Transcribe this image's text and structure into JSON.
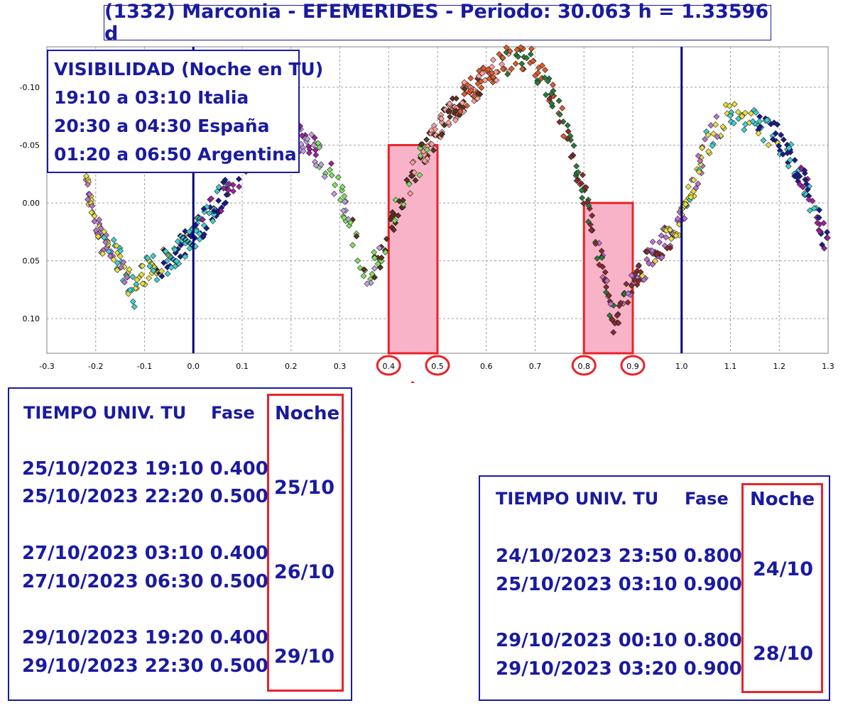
{
  "title": "(1332) Marconia - EFEMERIDES - Periodo: 30.063 h = 1.33596 d",
  "visibility": {
    "heading": "VISIBILIDAD (Noche en TU)",
    "lines": [
      "19:10 a 03:10 Italia",
      "20:30 a 04:30 España",
      "01:20 a 06:50 Argentina"
    ]
  },
  "table_left": {
    "col_time": "TIEMPO UNIV. TU",
    "col_phase": "Fase",
    "col_night": "Noche",
    "groups": [
      {
        "rows": [
          "25/10/2023  19:10 0.400",
          "25/10/2023  22:20 0.500"
        ],
        "night": "25/10"
      },
      {
        "rows": [
          "27/10/2023  03:10 0.400",
          "27/10/2023  06:30 0.500"
        ],
        "night": "26/10"
      },
      {
        "rows": [
          "29/10/2023  19:20 0.400",
          "29/10/2023  22:30 0.500"
        ],
        "night": "29/10"
      }
    ]
  },
  "table_right": {
    "col_time": "TIEMPO UNIV. TU",
    "col_phase": "Fase",
    "col_night": "Noche",
    "groups": [
      {
        "rows": [
          "24/10/2023  23:50 0.800",
          "25/10/2023  03:10 0.900"
        ],
        "night": "24/10"
      },
      {
        "rows": [
          "29/10/2023  00:10 0.800",
          "29/10/2023  03:20 0.900"
        ],
        "night": "28/10"
      }
    ]
  },
  "colors": {
    "accent": "#1a1aa0",
    "highlight_fill": "#f9b3c8",
    "highlight_border": "#e8232a",
    "arrow": "#e8232a",
    "night_line": "#00007a"
  },
  "chart_data": {
    "type": "scatter",
    "title": "(1332) Marconia - EFEMERIDES - Periodo: 30.063 h = 1.33596 d",
    "xlabel": "",
    "ylabel": "",
    "xlim": [
      -0.3,
      1.3
    ],
    "ylim": [
      0.13,
      -0.135
    ],
    "y_inverted": true,
    "grid": true,
    "x_ticks": [
      "-0.3",
      "-0.2",
      "-0.1",
      "0.0",
      "0.1",
      "0.2",
      "0.3",
      "0.4",
      "0.5",
      "0.6",
      "0.7",
      "0.8",
      "0.9",
      "1.0",
      "1.1",
      "1.2",
      "1.3"
    ],
    "y_ticks": [
      "-0.10",
      "-0.05",
      "0.00",
      "0.05",
      "0.10"
    ],
    "vertical_lines": [
      0.0,
      1.0
    ],
    "highlight_bands": [
      {
        "x": [
          0.4,
          0.5
        ],
        "y_top": -0.05
      },
      {
        "x": [
          0.8,
          0.9
        ],
        "y_top": 0.0
      }
    ],
    "circled_ticks": [
      "0.4",
      "0.5",
      "0.8",
      "0.9"
    ],
    "lightcurve": [
      [
        -0.22,
        -0.02
      ],
      [
        -0.19,
        0.03
      ],
      [
        -0.15,
        0.05
      ],
      [
        -0.12,
        0.08
      ],
      [
        -0.1,
        0.06
      ],
      [
        -0.05,
        0.05
      ],
      [
        0.0,
        0.03
      ],
      [
        0.05,
        0.0
      ],
      [
        0.1,
        -0.03
      ],
      [
        0.15,
        -0.055
      ],
      [
        0.2,
        -0.06
      ],
      [
        0.25,
        -0.045
      ],
      [
        0.3,
        -0.01
      ],
      [
        0.33,
        0.03
      ],
      [
        0.35,
        0.065
      ],
      [
        0.38,
        0.05
      ],
      [
        0.42,
        0.0
      ],
      [
        0.48,
        -0.05
      ],
      [
        0.55,
        -0.09
      ],
      [
        0.6,
        -0.11
      ],
      [
        0.65,
        -0.125
      ],
      [
        0.7,
        -0.12
      ],
      [
        0.75,
        -0.08
      ],
      [
        0.8,
        -0.01
      ],
      [
        0.84,
        0.06
      ],
      [
        0.86,
        0.1
      ],
      [
        0.9,
        0.07
      ],
      [
        0.95,
        0.04
      ],
      [
        1.0,
        0.015
      ],
      [
        1.05,
        -0.05
      ],
      [
        1.1,
        -0.08
      ],
      [
        1.15,
        -0.07
      ],
      [
        1.2,
        -0.055
      ],
      [
        1.25,
        -0.02
      ],
      [
        1.3,
        0.04
      ]
    ],
    "series_colors": [
      "#e05a2a",
      "#2a7a3a",
      "#8a2a2a",
      "#c070d0",
      "#e8e040",
      "#40d0d0",
      "#1a1a90",
      "#a020a0",
      "#c0a0e0",
      "#80e060",
      "#603020",
      "#ffa0a0"
    ]
  }
}
